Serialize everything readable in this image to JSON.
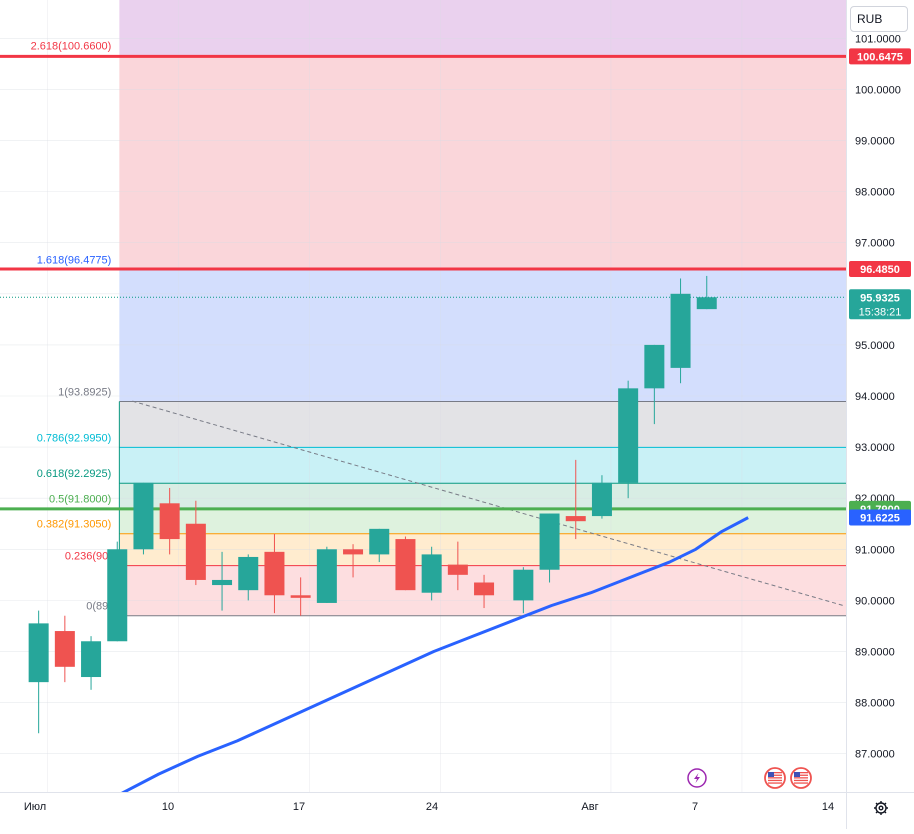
{
  "currency": "RUB",
  "countdown": "15:38:21",
  "chart_data": {
    "type": "candlestick",
    "y_range": [
      86.25,
      101.75
    ],
    "y_ticks": [
      "101.0000",
      "100.0000",
      "99.0000",
      "98.0000",
      "97.0000",
      "95.0000",
      "94.0000",
      "93.0000",
      "92.0000",
      "91.0000",
      "90.0000",
      "89.0000",
      "88.0000",
      "87.0000"
    ],
    "x_tick_labels": [
      "Июл",
      "10",
      "17",
      "24",
      "Авг",
      "7",
      "14"
    ],
    "candles": [
      {
        "x": 0.6,
        "o": 88.4,
        "h": 89.8,
        "l": 87.4,
        "c": 89.55
      },
      {
        "x": 1.4,
        "o": 89.4,
        "h": 89.7,
        "l": 88.4,
        "c": 88.7
      },
      {
        "x": 2.2,
        "o": 88.5,
        "h": 89.3,
        "l": 88.25,
        "c": 89.2
      },
      {
        "x": 3.0,
        "o": 89.2,
        "h": 91.15,
        "l": 89.2,
        "c": 91.0
      },
      {
        "x": 3.8,
        "o": 91.0,
        "h": 92.3,
        "l": 90.9,
        "c": 92.3
      },
      {
        "x": 4.6,
        "o": 91.9,
        "h": 92.2,
        "l": 90.9,
        "c": 91.2
      },
      {
        "x": 5.4,
        "o": 91.5,
        "h": 91.95,
        "l": 90.3,
        "c": 90.4
      },
      {
        "x": 6.2,
        "o": 90.3,
        "h": 90.95,
        "l": 89.8,
        "c": 90.4
      },
      {
        "x": 7.0,
        "o": 90.2,
        "h": 90.9,
        "l": 90.0,
        "c": 90.85
      },
      {
        "x": 7.8,
        "o": 90.95,
        "h": 91.3,
        "l": 89.75,
        "c": 90.1
      },
      {
        "x": 8.6,
        "o": 90.1,
        "h": 90.45,
        "l": 89.7,
        "c": 90.05
      },
      {
        "x": 9.4,
        "o": 89.95,
        "h": 91.05,
        "l": 89.95,
        "c": 91.0
      },
      {
        "x": 10.2,
        "o": 91.0,
        "h": 91.1,
        "l": 90.45,
        "c": 90.9
      },
      {
        "x": 11.0,
        "o": 90.9,
        "h": 91.4,
        "l": 90.75,
        "c": 91.4
      },
      {
        "x": 11.8,
        "o": 91.2,
        "h": 91.25,
        "l": 90.2,
        "c": 90.2
      },
      {
        "x": 12.6,
        "o": 90.15,
        "h": 91.05,
        "l": 90.0,
        "c": 90.9
      },
      {
        "x": 13.4,
        "o": 90.7,
        "h": 91.15,
        "l": 90.2,
        "c": 90.5
      },
      {
        "x": 14.2,
        "o": 90.35,
        "h": 90.5,
        "l": 89.85,
        "c": 90.1
      },
      {
        "x": 15.4,
        "o": 90.0,
        "h": 90.65,
        "l": 89.75,
        "c": 90.6
      },
      {
        "x": 16.2,
        "o": 90.6,
        "h": 91.7,
        "l": 90.35,
        "c": 91.7
      },
      {
        "x": 17.0,
        "o": 91.65,
        "h": 92.75,
        "l": 91.2,
        "c": 91.55
      },
      {
        "x": 17.8,
        "o": 91.65,
        "h": 92.45,
        "l": 91.6,
        "c": 92.3
      },
      {
        "x": 18.6,
        "o": 92.3,
        "h": 94.3,
        "l": 92.0,
        "c": 94.15
      },
      {
        "x": 19.4,
        "o": 94.15,
        "h": 95.0,
        "l": 93.45,
        "c": 95.0
      },
      {
        "x": 20.2,
        "o": 94.55,
        "h": 96.3,
        "l": 94.25,
        "c": 96.0
      },
      {
        "x": 21.0,
        "o": 95.7,
        "h": 96.35,
        "l": 95.7,
        "c": 95.9325
      }
    ],
    "moving_average": [
      [
        3.4,
        86.2
      ],
      [
        4.6,
        86.6
      ],
      [
        5.8,
        86.95
      ],
      [
        7.0,
        87.25
      ],
      [
        8.2,
        87.6
      ],
      [
        9.4,
        87.95
      ],
      [
        10.6,
        88.3
      ],
      [
        11.8,
        88.65
      ],
      [
        13.0,
        89.0
      ],
      [
        14.2,
        89.3
      ],
      [
        15.4,
        89.6
      ],
      [
        16.6,
        89.9
      ],
      [
        17.8,
        90.15
      ],
      [
        18.6,
        90.35
      ],
      [
        19.4,
        90.55
      ],
      [
        20.2,
        90.75
      ],
      [
        21.0,
        91.0
      ],
      [
        21.8,
        91.35
      ],
      [
        22.6,
        91.62
      ]
    ],
    "fibonacci_levels": [
      {
        "label": "2.618(100.6600)",
        "value": 100.66,
        "color": "#f23645"
      },
      {
        "label": "1.618(96.4775)",
        "value": 96.4775,
        "color": "#2962ff"
      },
      {
        "label": "1(93.8925)",
        "value": 93.8925,
        "color": "#787b86"
      },
      {
        "label": "0.786(92.9950)",
        "value": 92.995,
        "color": "#00bcd4"
      },
      {
        "label": "0.618(92.2925)",
        "value": 92.2925,
        "color": "#089981"
      },
      {
        "label": "0.5(91.8000)",
        "value": 91.8,
        "color": "#4caf50"
      },
      {
        "label": "0.382(91.3050)",
        "value": 91.305,
        "color": "#ff9800"
      },
      {
        "label": "0.236(90.",
        "value": 90.68,
        "color": "#f23645"
      },
      {
        "label": "0(89.",
        "value": 89.7,
        "color": "#787b86"
      }
    ],
    "horizontal_lines": [
      {
        "label": "100.6475",
        "value": 100.6475,
        "color": "#f23645"
      },
      {
        "label": "96.4850",
        "value": 96.485,
        "color": "#f23645"
      },
      {
        "label": "91.7900",
        "value": 91.79,
        "color": "#4caf50"
      }
    ],
    "moving_average_label": "91.6225",
    "last_price": "95.9325",
    "trendline": {
      "from": [
        3.8,
        93.9
      ],
      "to": [
        25.5,
        89.9
      ]
    },
    "event_icons": [
      "lightning-icon",
      "us-flag-icon",
      "us-flag-icon"
    ]
  }
}
